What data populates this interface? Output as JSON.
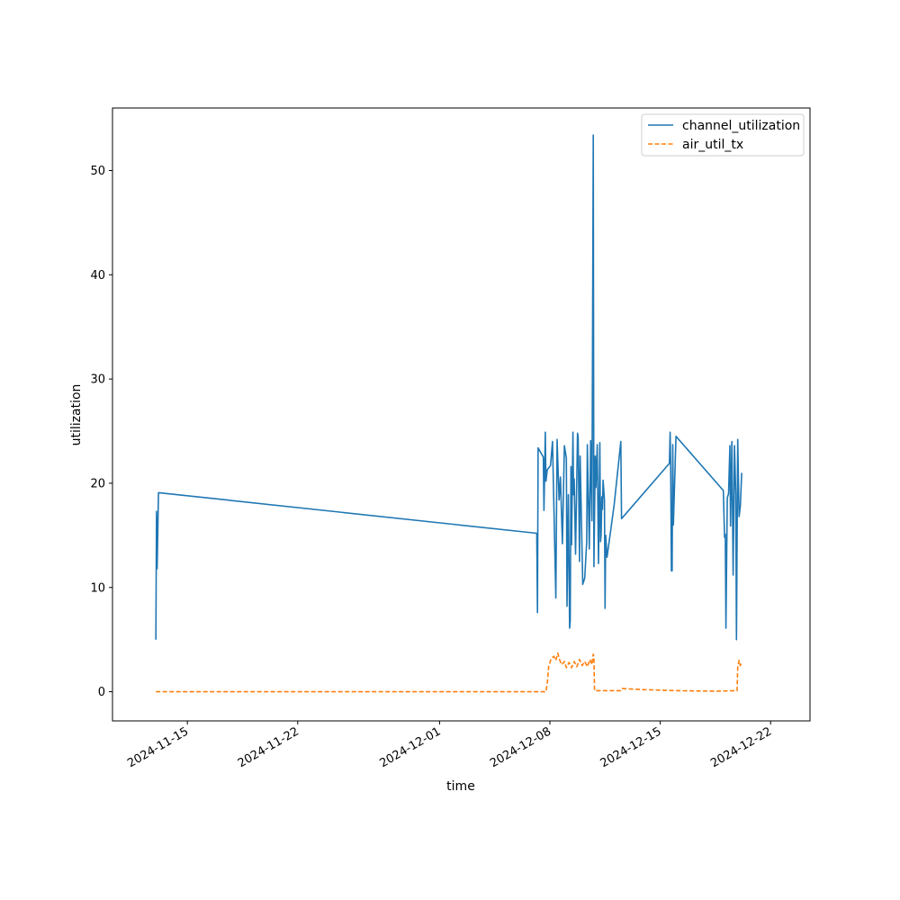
{
  "chart_data": {
    "type": "line",
    "title": "",
    "xlabel": "time",
    "ylabel": "utilization",
    "x_type": "date",
    "xlim": [
      "2024-11-10T06:00",
      "2024-12-24T12:00"
    ],
    "ylim": [
      -2.8,
      56.0
    ],
    "x_ticks": [
      "2024-11-15",
      "2024-11-22",
      "2024-12-01",
      "2024-12-08",
      "2024-12-15",
      "2024-12-22"
    ],
    "y_ticks": [
      0,
      10,
      20,
      30,
      40,
      50
    ],
    "grid": false,
    "legend_position": "upper right",
    "series": [
      {
        "name": "channel_utilization",
        "color": "#1f77b4",
        "line_style": "solid",
        "points": [
          [
            "2024-11-13T00:00",
            5.0
          ],
          [
            "2024-11-13T01:00",
            17.3
          ],
          [
            "2024-11-13T02:00",
            11.8
          ],
          [
            "2024-11-13T04:00",
            19.1
          ],
          [
            "2024-12-07T04:00",
            15.2
          ],
          [
            "2024-12-07T05:00",
            7.6
          ],
          [
            "2024-12-07T06:00",
            23.4
          ],
          [
            "2024-12-07T14:00",
            22.5
          ],
          [
            "2024-12-07T15:00",
            17.4
          ],
          [
            "2024-12-07T17:00",
            24.9
          ],
          [
            "2024-12-07T18:00",
            20.2
          ],
          [
            "2024-12-07T20:00",
            21.3
          ],
          [
            "2024-12-08T01:00",
            21.7
          ],
          [
            "2024-12-08T04:00",
            24.0
          ],
          [
            "2024-12-08T09:00",
            9.0
          ],
          [
            "2024-12-08T11:00",
            24.2
          ],
          [
            "2024-12-08T14:00",
            18.4
          ],
          [
            "2024-12-08T16:00",
            20.6
          ],
          [
            "2024-12-08T19:00",
            14.2
          ],
          [
            "2024-12-08T22:00",
            23.6
          ],
          [
            "2024-12-09T01:00",
            22.4
          ],
          [
            "2024-12-09T02:00",
            8.2
          ],
          [
            "2024-12-09T04:00",
            18.9
          ],
          [
            "2024-12-09T06:00",
            6.1
          ],
          [
            "2024-12-09T07:00",
            6.8
          ],
          [
            "2024-12-09T08:00",
            21.6
          ],
          [
            "2024-12-09T09:00",
            14.1
          ],
          [
            "2024-12-09T11:00",
            24.9
          ],
          [
            "2024-12-09T12:00",
            18.9
          ],
          [
            "2024-12-09T13:00",
            20.4
          ],
          [
            "2024-12-09T15:00",
            13.2
          ],
          [
            "2024-12-09T18:00",
            24.8
          ],
          [
            "2024-12-09T19:00",
            24.4
          ],
          [
            "2024-12-09T21:00",
            12.5
          ],
          [
            "2024-12-09T22:00",
            22.6
          ],
          [
            "2024-12-10T02:00",
            10.3
          ],
          [
            "2024-12-10T05:00",
            10.9
          ],
          [
            "2024-12-10T08:00",
            14.4
          ],
          [
            "2024-12-10T09:00",
            23.7
          ],
          [
            "2024-12-10T12:00",
            13.7
          ],
          [
            "2024-12-10T14:00",
            24.1
          ],
          [
            "2024-12-10T16:00",
            16.4
          ],
          [
            "2024-12-10T18:00",
            53.4
          ],
          [
            "2024-12-10T19:00",
            12.0
          ],
          [
            "2024-12-10T21:00",
            22.6
          ],
          [
            "2024-12-10T22:00",
            19.6
          ],
          [
            "2024-12-11T00:00",
            23.7
          ],
          [
            "2024-12-11T02:00",
            12.3
          ],
          [
            "2024-12-11T04:00",
            23.9
          ],
          [
            "2024-12-11T05:00",
            14.4
          ],
          [
            "2024-12-11T06:00",
            15.0
          ],
          [
            "2024-12-11T07:00",
            18.7
          ],
          [
            "2024-12-11T08:00",
            17.5
          ],
          [
            "2024-12-11T09:00",
            20.3
          ],
          [
            "2024-12-11T11:00",
            18.4
          ],
          [
            "2024-12-11T12:00",
            8.0
          ],
          [
            "2024-12-11T13:00",
            15.0
          ],
          [
            "2024-12-11T15:00",
            12.9
          ],
          [
            "2024-12-12T02:00",
            18.0
          ],
          [
            "2024-12-12T12:00",
            24.0
          ],
          [
            "2024-12-12T13:00",
            16.6
          ],
          [
            "2024-12-15T14:00",
            21.9
          ],
          [
            "2024-12-15T15:00",
            24.9
          ],
          [
            "2024-12-15T16:00",
            21.0
          ],
          [
            "2024-12-15T17:00",
            11.6
          ],
          [
            "2024-12-15T18:00",
            11.6
          ],
          [
            "2024-12-15T19:00",
            23.7
          ],
          [
            "2024-12-15T20:00",
            16.0
          ],
          [
            "2024-12-16T00:00",
            24.5
          ],
          [
            "2024-12-19T00:00",
            19.3
          ],
          [
            "2024-12-19T02:00",
            14.8
          ],
          [
            "2024-12-19T03:00",
            15.1
          ],
          [
            "2024-12-19T04:00",
            6.1
          ],
          [
            "2024-12-19T06:00",
            18.6
          ],
          [
            "2024-12-19T08:00",
            19.0
          ],
          [
            "2024-12-19T10:00",
            23.6
          ],
          [
            "2024-12-19T11:00",
            15.9
          ],
          [
            "2024-12-19T13:00",
            24.0
          ],
          [
            "2024-12-19T15:00",
            11.2
          ],
          [
            "2024-12-19T17:00",
            23.6
          ],
          [
            "2024-12-19T19:00",
            19.0
          ],
          [
            "2024-12-19T20:00",
            5.0
          ],
          [
            "2024-12-19T22:00",
            24.2
          ],
          [
            "2024-12-20T00:00",
            16.8
          ],
          [
            "2024-12-20T02:00",
            17.8
          ],
          [
            "2024-12-20T04:00",
            21.0
          ]
        ]
      },
      {
        "name": "air_util_tx",
        "color": "#ff7f0e",
        "line_style": "dashed",
        "points": [
          [
            "2024-11-13T00:00",
            0.0
          ],
          [
            "2024-12-07T04:00",
            0.0
          ],
          [
            "2024-12-07T18:00",
            0.0
          ],
          [
            "2024-12-07T20:00",
            0.8
          ],
          [
            "2024-12-07T22:00",
            2.4
          ],
          [
            "2024-12-08T02:00",
            3.2
          ],
          [
            "2024-12-08T06:00",
            3.4
          ],
          [
            "2024-12-08T09:00",
            3.0
          ],
          [
            "2024-12-08T12:00",
            3.7
          ],
          [
            "2024-12-08T15:00",
            3.0
          ],
          [
            "2024-12-08T18:00",
            2.6
          ],
          [
            "2024-12-08T22:00",
            2.9
          ],
          [
            "2024-12-09T01:00",
            2.3
          ],
          [
            "2024-12-09T05:00",
            2.8
          ],
          [
            "2024-12-09T09:00",
            2.3
          ],
          [
            "2024-12-09T13:00",
            2.9
          ],
          [
            "2024-12-09T17:00",
            2.4
          ],
          [
            "2024-12-09T21:00",
            3.1
          ],
          [
            "2024-12-10T01:00",
            2.5
          ],
          [
            "2024-12-10T05:00",
            2.9
          ],
          [
            "2024-12-10T09:00",
            2.4
          ],
          [
            "2024-12-10T13:00",
            3.1
          ],
          [
            "2024-12-10T16:00",
            2.6
          ],
          [
            "2024-12-10T18:00",
            3.6
          ],
          [
            "2024-12-10T19:00",
            3.3
          ],
          [
            "2024-12-10T20:00",
            0.1
          ],
          [
            "2024-12-12T12:00",
            0.1
          ],
          [
            "2024-12-12T14:00",
            0.3
          ],
          [
            "2024-12-14T00:00",
            0.2
          ],
          [
            "2024-12-16T00:00",
            0.1
          ],
          [
            "2024-12-18T12:00",
            0.05
          ],
          [
            "2024-12-19T18:00",
            0.1
          ],
          [
            "2024-12-19T21:00",
            0.1
          ],
          [
            "2024-12-19T22:00",
            2.4
          ],
          [
            "2024-12-20T00:00",
            3.0
          ],
          [
            "2024-12-20T02:00",
            2.5
          ],
          [
            "2024-12-20T04:00",
            2.8
          ]
        ]
      }
    ]
  }
}
